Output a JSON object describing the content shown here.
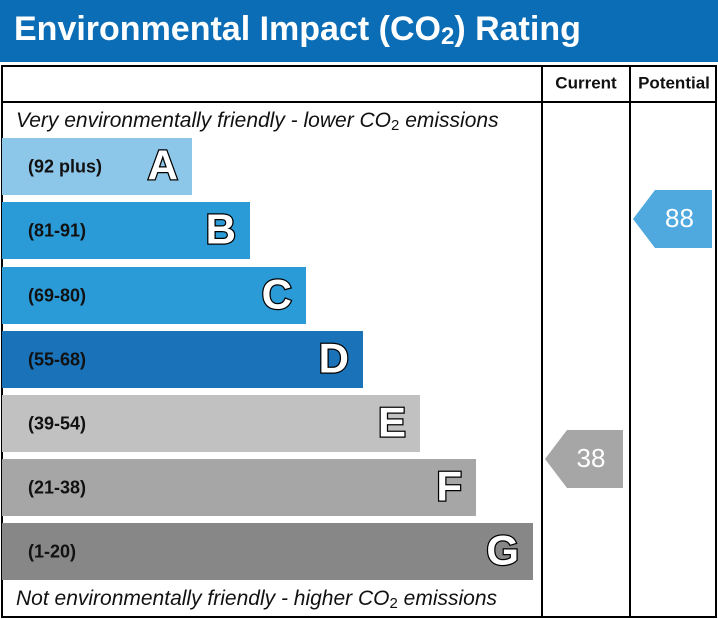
{
  "title": {
    "parts": [
      "Environmental Impact (CO",
      "2",
      ") Rating"
    ]
  },
  "columns": {
    "current": "Current",
    "potential": "Potential"
  },
  "top_note": {
    "parts": [
      "Very environmentally friendly - lower CO",
      "2",
      " emissions"
    ]
  },
  "bottom_note": {
    "parts": [
      "Not environmentally friendly - higher CO",
      "2",
      " emissions"
    ]
  },
  "bands": [
    {
      "range": "(92 plus)",
      "letter": "A",
      "color": "#8cc6e8"
    },
    {
      "range": "(81-91)",
      "letter": "B",
      "color": "#2a9bd7"
    },
    {
      "range": "(69-80)",
      "letter": "C",
      "color": "#2a9bd7"
    },
    {
      "range": "(55-68)",
      "letter": "D",
      "color": "#1a72b8"
    },
    {
      "range": "(39-54)",
      "letter": "E",
      "color": "#c1c1c1"
    },
    {
      "range": "(21-38)",
      "letter": "F",
      "color": "#a6a6a6"
    },
    {
      "range": "(1-20)",
      "letter": "G",
      "color": "#878787"
    }
  ],
  "current": {
    "value": 38,
    "color": "#a6a6a6"
  },
  "potential": {
    "value": 88,
    "color": "#4fa9de"
  }
}
